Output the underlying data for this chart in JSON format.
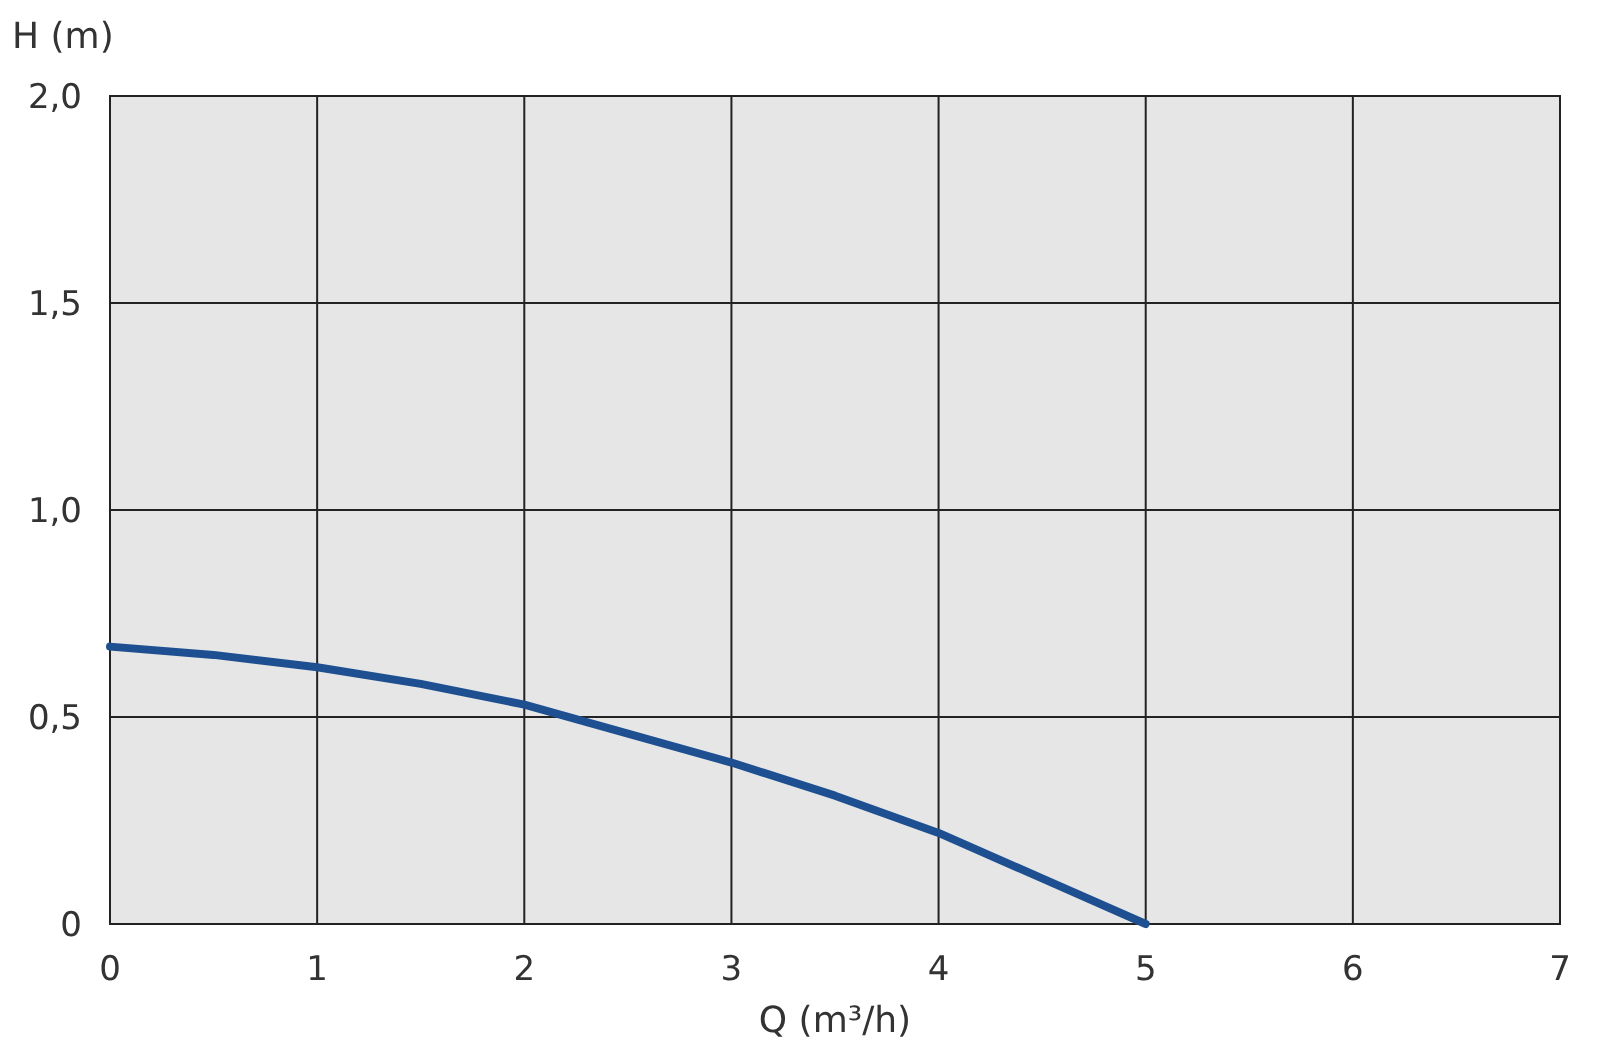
{
  "chart_data": {
    "type": "line",
    "xlabel": "Q (m³/h)",
    "ylabel": "H (m)",
    "x": [
      0,
      0.5,
      1,
      1.5,
      2,
      2.5,
      3,
      3.5,
      4,
      4.5,
      5
    ],
    "series": [
      {
        "color": "#1d4f91",
        "values": [
          0.67,
          0.65,
          0.62,
          0.58,
          0.53,
          0.46,
          0.39,
          0.31,
          0.22,
          0.11,
          0
        ]
      }
    ],
    "xlim": [
      0,
      7
    ],
    "ylim": [
      0,
      2
    ],
    "xticks": [
      0,
      1,
      2,
      3,
      4,
      5,
      6,
      7
    ],
    "yticks": [
      {
        "value": 0,
        "label": "0"
      },
      {
        "value": 0.5,
        "label": "0,5"
      },
      {
        "value": 1,
        "label": "1,0"
      },
      {
        "value": 1.5,
        "label": "1,5"
      },
      {
        "value": 2,
        "label": "2,0"
      }
    ],
    "grid": true,
    "marker": "none",
    "line_style": "solid"
  }
}
